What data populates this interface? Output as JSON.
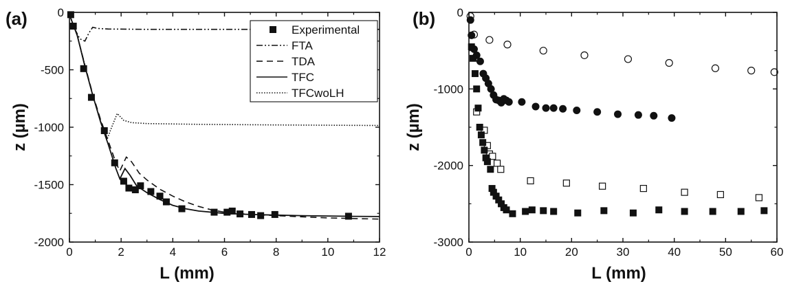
{
  "chart_data": [
    {
      "panel_label": "(a)",
      "type": "line",
      "xlabel": "L (mm)",
      "ylabel": "z (µm)",
      "xlim": [
        0,
        12
      ],
      "ylim": [
        -2000,
        0
      ],
      "xticks": [
        0,
        2,
        4,
        6,
        8,
        10,
        12
      ],
      "yticks": [
        0,
        -500,
        -1000,
        -1500,
        -2000
      ],
      "grid": false,
      "legend_position": "top-right",
      "series": [
        {
          "name": "Experimental",
          "kind": "scatter",
          "marker": "filled-square",
          "points": [
            [
              0.05,
              -20
            ],
            [
              0.15,
              -120
            ],
            [
              0.55,
              -490
            ],
            [
              0.85,
              -740
            ],
            [
              1.35,
              -1030
            ],
            [
              1.75,
              -1310
            ],
            [
              2.1,
              -1470
            ],
            [
              2.3,
              -1530
            ],
            [
              2.55,
              -1545
            ],
            [
              2.75,
              -1510
            ],
            [
              3.15,
              -1560
            ],
            [
              3.5,
              -1600
            ],
            [
              3.75,
              -1650
            ],
            [
              4.35,
              -1710
            ],
            [
              5.6,
              -1740
            ],
            [
              6.1,
              -1740
            ],
            [
              6.3,
              -1730
            ],
            [
              6.6,
              -1755
            ],
            [
              7.05,
              -1760
            ],
            [
              7.4,
              -1770
            ],
            [
              7.95,
              -1760
            ],
            [
              10.8,
              -1775
            ]
          ]
        },
        {
          "name": "FTA",
          "kind": "line",
          "dash": "dash-dot-dot",
          "points": [
            [
              0,
              -20
            ],
            [
              0.2,
              -140
            ],
            [
              0.4,
              -230
            ],
            [
              0.6,
              -250
            ],
            [
              0.75,
              -180
            ],
            [
              0.9,
              -130
            ],
            [
              1.1,
              -140
            ],
            [
              1.5,
              -145
            ],
            [
              3,
              -148
            ],
            [
              6,
              -148
            ],
            [
              9,
              -148
            ],
            [
              12,
              -148
            ]
          ]
        },
        {
          "name": "TDA",
          "kind": "line",
          "dash": "dashed",
          "points": [
            [
              0,
              -20
            ],
            [
              0.3,
              -200
            ],
            [
              0.6,
              -460
            ],
            [
              0.9,
              -710
            ],
            [
              1.2,
              -930
            ],
            [
              1.5,
              -1120
            ],
            [
              1.8,
              -1310
            ],
            [
              1.95,
              -1380
            ],
            [
              2.2,
              -1260
            ],
            [
              2.4,
              -1300
            ],
            [
              2.7,
              -1400
            ],
            [
              3,
              -1460
            ],
            [
              3.5,
              -1540
            ],
            [
              4,
              -1600
            ],
            [
              4.5,
              -1650
            ],
            [
              5,
              -1690
            ],
            [
              5.5,
              -1720
            ],
            [
              6,
              -1740
            ],
            [
              7,
              -1760
            ],
            [
              8,
              -1770
            ],
            [
              9,
              -1780
            ],
            [
              10,
              -1790
            ],
            [
              11,
              -1795
            ],
            [
              12,
              -1800
            ]
          ]
        },
        {
          "name": "TFC",
          "kind": "line",
          "dash": "solid",
          "points": [
            [
              0,
              -20
            ],
            [
              0.3,
              -200
            ],
            [
              0.6,
              -470
            ],
            [
              0.9,
              -720
            ],
            [
              1.2,
              -950
            ],
            [
              1.5,
              -1150
            ],
            [
              1.8,
              -1360
            ],
            [
              1.95,
              -1450
            ],
            [
              2.15,
              -1360
            ],
            [
              2.35,
              -1420
            ],
            [
              2.6,
              -1510
            ],
            [
              3,
              -1570
            ],
            [
              3.5,
              -1630
            ],
            [
              4,
              -1680
            ],
            [
              4.5,
              -1710
            ],
            [
              5,
              -1730
            ],
            [
              6,
              -1750
            ],
            [
              7,
              -1760
            ],
            [
              8,
              -1765
            ],
            [
              9,
              -1770
            ],
            [
              10,
              -1773
            ],
            [
              11,
              -1776
            ],
            [
              12,
              -1778
            ]
          ]
        },
        {
          "name": "TFCwoLH",
          "kind": "line",
          "dash": "dotted",
          "points": [
            [
              0,
              -20
            ],
            [
              0.3,
              -200
            ],
            [
              0.6,
              -460
            ],
            [
              0.9,
              -720
            ],
            [
              1.2,
              -940
            ],
            [
              1.45,
              -1110
            ],
            [
              1.6,
              -1020
            ],
            [
              1.85,
              -880
            ],
            [
              2.1,
              -940
            ],
            [
              2.4,
              -960
            ],
            [
              3,
              -968
            ],
            [
              5,
              -975
            ],
            [
              8,
              -980
            ],
            [
              12,
              -985
            ]
          ]
        }
      ]
    },
    {
      "panel_label": "(b)",
      "type": "scatter",
      "xlabel": "L (mm)",
      "ylabel": "z (µm)",
      "xlim": [
        0,
        60
      ],
      "ylim": [
        -3000,
        0
      ],
      "xticks": [
        0,
        10,
        20,
        30,
        40,
        50,
        60
      ],
      "yticks": [
        0,
        -1000,
        -2000,
        -3000
      ],
      "grid": false,
      "series": [
        {
          "marker": "open-circle",
          "points": [
            [
              0.3,
              -50
            ],
            [
              1,
              -290
            ],
            [
              4,
              -360
            ],
            [
              7.5,
              -420
            ],
            [
              14.5,
              -500
            ],
            [
              22.5,
              -560
            ],
            [
              31,
              -610
            ],
            [
              39,
              -660
            ],
            [
              48,
              -730
            ],
            [
              55,
              -760
            ],
            [
              59.5,
              -780
            ]
          ]
        },
        {
          "marker": "filled-circle",
          "points": [
            [
              0.3,
              -100
            ],
            [
              0.5,
              -300
            ],
            [
              1,
              -480
            ],
            [
              1.5,
              -560
            ],
            [
              2.2,
              -640
            ],
            [
              2.8,
              -800
            ],
            [
              3.3,
              -860
            ],
            [
              3.8,
              -930
            ],
            [
              4.3,
              -1000
            ],
            [
              4.8,
              -1080
            ],
            [
              5.3,
              -1140
            ],
            [
              5.8,
              -1150
            ],
            [
              6.3,
              -1180
            ],
            [
              6.8,
              -1130
            ],
            [
              7.3,
              -1150
            ],
            [
              7.8,
              -1170
            ],
            [
              10.3,
              -1170
            ],
            [
              13,
              -1230
            ],
            [
              15,
              -1250
            ],
            [
              16.5,
              -1250
            ],
            [
              18.3,
              -1260
            ],
            [
              21,
              -1280
            ],
            [
              25,
              -1300
            ],
            [
              29,
              -1330
            ],
            [
              33,
              -1340
            ],
            [
              36,
              -1350
            ],
            [
              39.5,
              -1380
            ]
          ]
        },
        {
          "marker": "open-square",
          "points": [
            [
              1.5,
              -1300
            ],
            [
              3,
              -1540
            ],
            [
              3.6,
              -1740
            ],
            [
              4,
              -1850
            ],
            [
              4.6,
              -1880
            ],
            [
              5.5,
              -1970
            ],
            [
              6.2,
              -2050
            ],
            [
              12,
              -2200
            ],
            [
              19,
              -2230
            ],
            [
              26,
              -2270
            ],
            [
              34,
              -2300
            ],
            [
              42,
              -2350
            ],
            [
              49,
              -2380
            ],
            [
              56.5,
              -2420
            ]
          ]
        },
        {
          "marker": "filled-square",
          "points": [
            [
              0.5,
              -450
            ],
            [
              0.8,
              -600
            ],
            [
              1.2,
              -800
            ],
            [
              1.5,
              -1000
            ],
            [
              1.8,
              -1250
            ],
            [
              2.1,
              -1500
            ],
            [
              2.4,
              -1600
            ],
            [
              2.7,
              -1700
            ],
            [
              3,
              -1800
            ],
            [
              3.3,
              -1900
            ],
            [
              3.6,
              -1950
            ],
            [
              4.2,
              -2050
            ],
            [
              4.5,
              -2300
            ],
            [
              4.8,
              -2350
            ],
            [
              5.3,
              -2400
            ],
            [
              5.8,
              -2450
            ],
            [
              6.3,
              -2500
            ],
            [
              6.8,
              -2550
            ],
            [
              7.3,
              -2580
            ],
            [
              8.5,
              -2630
            ],
            [
              11,
              -2600
            ],
            [
              12.3,
              -2580
            ],
            [
              14.5,
              -2590
            ],
            [
              16.5,
              -2600
            ],
            [
              21.2,
              -2620
            ],
            [
              26.3,
              -2590
            ],
            [
              32,
              -2620
            ],
            [
              37,
              -2580
            ],
            [
              42,
              -2600
            ],
            [
              47.5,
              -2600
            ],
            [
              53,
              -2600
            ],
            [
              57.5,
              -2590
            ]
          ]
        }
      ]
    }
  ]
}
